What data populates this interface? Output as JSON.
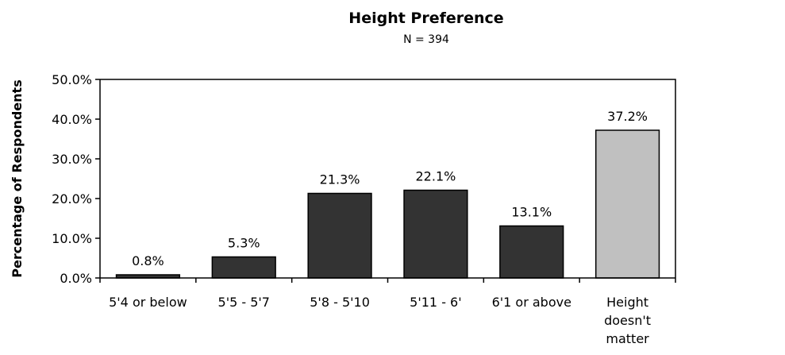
{
  "chart_data": {
    "type": "bar",
    "title": "Height Preference",
    "subtitle": "N = 394",
    "xlabel": "",
    "ylabel": "Percentage of Respondents",
    "categories": [
      "5'4 or below",
      "5'5 - 5'7",
      "5'8 - 5'10",
      "5'11 - 6'",
      "6'1 or above",
      "Height doesn't matter"
    ],
    "values": [
      0.8,
      5.3,
      21.3,
      22.1,
      13.1,
      37.2
    ],
    "data_labels": [
      "0.8%",
      "5.3%",
      "21.3%",
      "22.1%",
      "13.1%",
      "37.2%"
    ],
    "yticks": [
      "0.0%",
      "10.0%",
      "20.0%",
      "30.0%",
      "40.0%",
      "50.0%"
    ],
    "ylim": [
      0,
      50
    ],
    "grid": false,
    "legend": "none",
    "colors": [
      "#333333",
      "#333333",
      "#333333",
      "#333333",
      "#333333",
      "#c0c0c0"
    ]
  }
}
